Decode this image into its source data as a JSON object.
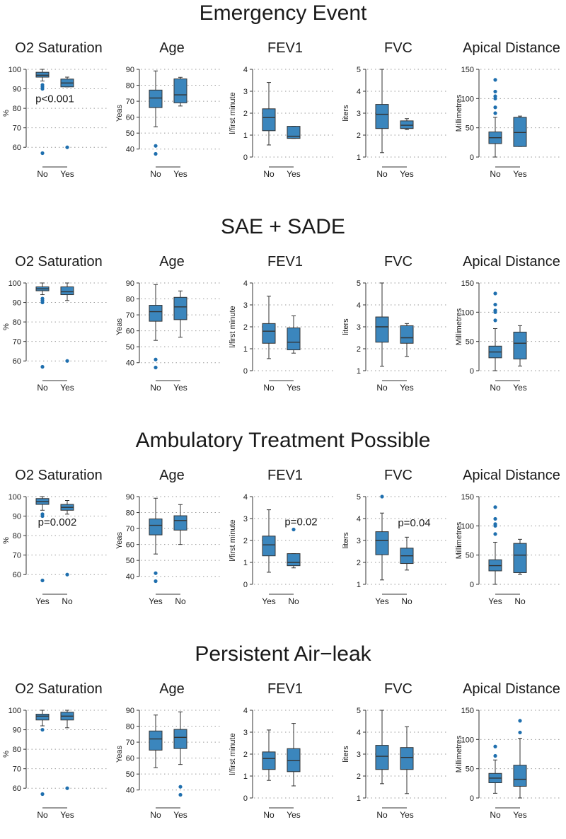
{
  "colors": {
    "box": "#3b86bd",
    "outlier": "#1f6fae",
    "axis": "#333333",
    "grid": "#9a9a9a",
    "text": "#1a1a1a"
  },
  "chart_data": [
    {
      "section": "Emergency Event",
      "panels": [
        {
          "type": "box",
          "title": "O2 Saturation",
          "ylabel": "%",
          "ylim": [
            55,
            100
          ],
          "ticks": [
            60,
            70,
            80,
            90,
            100
          ],
          "categories": [
            "No",
            "Yes"
          ],
          "boxes": [
            {
              "min": 94,
              "q1": 96,
              "median": 97,
              "q3": 98.5,
              "max": 100,
              "outliers": [
                92,
                91,
                90,
                57
              ]
            },
            {
              "min": 91,
              "q1": 91,
              "median": 93,
              "q3": 95,
              "max": 96,
              "outliers": [
                60
              ]
            }
          ],
          "annotation": {
            "text": "p<0.001",
            "x": 1.5,
            "y": 85
          }
        },
        {
          "type": "box",
          "title": "Age",
          "ylabel": "Yeas",
          "ylim": [
            35,
            90
          ],
          "ticks": [
            40,
            50,
            60,
            70,
            80,
            90
          ],
          "categories": [
            "No",
            "Yes"
          ],
          "boxes": [
            {
              "min": 54,
              "q1": 66,
              "median": 72,
              "q3": 77,
              "max": 89,
              "outliers": [
                42,
                37
              ]
            },
            {
              "min": 67,
              "q1": 69,
              "median": 74,
              "q3": 84,
              "max": 85,
              "outliers": []
            }
          ]
        },
        {
          "type": "box",
          "title": "FEV1",
          "ylabel": "l/first minute",
          "ylim": [
            0,
            4
          ],
          "ticks": [
            0,
            1,
            2,
            3,
            4
          ],
          "categories": [
            "No",
            "Yes"
          ],
          "boxes": [
            {
              "min": 0.55,
              "q1": 1.2,
              "median": 1.8,
              "q3": 2.2,
              "max": 3.4,
              "outliers": []
            },
            {
              "min": 0.85,
              "q1": 0.85,
              "median": 0.95,
              "q3": 1.4,
              "max": 1.4,
              "outliers": []
            }
          ]
        },
        {
          "type": "box",
          "title": "FVC",
          "ylabel": "liters",
          "ylim": [
            1,
            5
          ],
          "ticks": [
            1,
            2,
            3,
            4,
            5
          ],
          "categories": [
            "No",
            "Yes"
          ],
          "boxes": [
            {
              "min": 1.2,
              "q1": 2.3,
              "median": 2.95,
              "q3": 3.4,
              "max": 5.0,
              "outliers": []
            },
            {
              "min": 2.25,
              "q1": 2.3,
              "median": 2.45,
              "q3": 2.65,
              "max": 2.75,
              "outliers": []
            }
          ]
        },
        {
          "type": "box",
          "title": "Apical Distance",
          "ylabel": "Millimetres",
          "ylim": [
            0,
            150
          ],
          "ticks": [
            0,
            50,
            100,
            150
          ],
          "categories": [
            "No",
            "Yes"
          ],
          "boxes": [
            {
              "min": 0,
              "q1": 23,
              "median": 33,
              "q3": 43,
              "max": 68,
              "outliers": [
                75,
                85,
                100,
                104,
                112,
                132
              ]
            },
            {
              "min": 18,
              "q1": 18,
              "median": 42,
              "q3": 68,
              "max": 70,
              "outliers": []
            }
          ]
        }
      ]
    },
    {
      "section": "SAE + SADE",
      "panels": [
        {
          "type": "box",
          "title": "O2 Saturation",
          "ylabel": "%",
          "ylim": [
            55,
            100
          ],
          "ticks": [
            60,
            70,
            80,
            90,
            100
          ],
          "categories": [
            "No",
            "Yes"
          ],
          "boxes": [
            {
              "min": 94,
              "q1": 96,
              "median": 97,
              "q3": 98,
              "max": 100,
              "outliers": [
                92,
                91,
                90,
                57
              ]
            },
            {
              "min": 91,
              "q1": 94,
              "median": 95.5,
              "q3": 98,
              "max": 100,
              "outliers": [
                60
              ]
            }
          ]
        },
        {
          "type": "box",
          "title": "Age",
          "ylabel": "Yeas",
          "ylim": [
            35,
            90
          ],
          "ticks": [
            40,
            50,
            60,
            70,
            80,
            90
          ],
          "categories": [
            "No",
            "Yes"
          ],
          "boxes": [
            {
              "min": 54,
              "q1": 66,
              "median": 72,
              "q3": 76,
              "max": 89,
              "outliers": [
                42,
                37
              ]
            },
            {
              "min": 56,
              "q1": 67,
              "median": 75,
              "q3": 81,
              "max": 85,
              "outliers": []
            }
          ]
        },
        {
          "type": "box",
          "title": "FEV1",
          "ylabel": "l/first minute",
          "ylim": [
            0,
            4
          ],
          "ticks": [
            0,
            1,
            2,
            3,
            4
          ],
          "categories": [
            "No",
            "Yes"
          ],
          "boxes": [
            {
              "min": 0.55,
              "q1": 1.25,
              "median": 1.8,
              "q3": 2.15,
              "max": 3.4,
              "outliers": []
            },
            {
              "min": 0.8,
              "q1": 0.95,
              "median": 1.3,
              "q3": 1.95,
              "max": 2.5,
              "outliers": []
            }
          ]
        },
        {
          "type": "box",
          "title": "FVC",
          "ylabel": "liters",
          "ylim": [
            1,
            5
          ],
          "ticks": [
            1,
            2,
            3,
            4,
            5
          ],
          "categories": [
            "No",
            "Yes"
          ],
          "boxes": [
            {
              "min": 1.2,
              "q1": 2.3,
              "median": 3.0,
              "q3": 3.45,
              "max": 5.0,
              "outliers": []
            },
            {
              "min": 1.65,
              "q1": 2.25,
              "median": 2.5,
              "q3": 3.05,
              "max": 3.15,
              "outliers": []
            }
          ]
        },
        {
          "type": "box",
          "title": "Apical Distance",
          "ylabel": "Millimetres",
          "ylim": [
            0,
            150
          ],
          "ticks": [
            0,
            50,
            100,
            150
          ],
          "categories": [
            "No",
            "Yes"
          ],
          "boxes": [
            {
              "min": 0,
              "q1": 22,
              "median": 32,
              "q3": 42,
              "max": 72,
              "outliers": [
                86,
                100,
                103,
                113,
                132
              ]
            },
            {
              "min": 8,
              "q1": 20,
              "median": 47,
              "q3": 66,
              "max": 77,
              "outliers": []
            }
          ]
        }
      ]
    },
    {
      "section": "Ambulatory Treatment Possible",
      "panels": [
        {
          "type": "box",
          "title": "O2 Saturation",
          "ylabel": "%",
          "ylim": [
            55,
            100
          ],
          "ticks": [
            60,
            70,
            80,
            90,
            100
          ],
          "categories": [
            "Yes",
            "No"
          ],
          "boxes": [
            {
              "min": 93,
              "q1": 96,
              "median": 97.5,
              "q3": 99,
              "max": 100,
              "outliers": [
                91,
                90,
                57
              ]
            },
            {
              "min": 91,
              "q1": 93,
              "median": 94.5,
              "q3": 96,
              "max": 98,
              "outliers": [
                60
              ]
            }
          ],
          "annotation": {
            "text": "p=0.002",
            "x": 1.6,
            "y": 87
          }
        },
        {
          "type": "box",
          "title": "Age",
          "ylabel": "Yeas",
          "ylim": [
            35,
            90
          ],
          "ticks": [
            40,
            50,
            60,
            70,
            80,
            90
          ],
          "categories": [
            "Yes",
            "No"
          ],
          "boxes": [
            {
              "min": 54,
              "q1": 66,
              "median": 72,
              "q3": 76,
              "max": 89,
              "outliers": [
                42,
                37
              ]
            },
            {
              "min": 60,
              "q1": 69,
              "median": 75,
              "q3": 78,
              "max": 85,
              "outliers": []
            }
          ]
        },
        {
          "type": "box",
          "title": "FEV1",
          "ylabel": "l/first minute",
          "ylim": [
            0,
            4
          ],
          "ticks": [
            0,
            1,
            2,
            3,
            4
          ],
          "categories": [
            "Yes",
            "No"
          ],
          "boxes": [
            {
              "min": 0.55,
              "q1": 1.3,
              "median": 1.8,
              "q3": 2.2,
              "max": 3.4,
              "outliers": []
            },
            {
              "min": 0.75,
              "q1": 0.85,
              "median": 1.0,
              "q3": 1.4,
              "max": 1.4,
              "outliers": [
                2.5
              ]
            }
          ],
          "annotation": {
            "text": "p=0.02",
            "x": 2.3,
            "y": 2.85
          }
        },
        {
          "type": "box",
          "title": "FVC",
          "ylabel": "liters",
          "ylim": [
            1,
            5
          ],
          "ticks": [
            1,
            2,
            3,
            4,
            5
          ],
          "categories": [
            "Yes",
            "No"
          ],
          "boxes": [
            {
              "min": 1.2,
              "q1": 2.35,
              "median": 3.0,
              "q3": 3.4,
              "max": 4.25,
              "outliers": [
                5.0
              ]
            },
            {
              "min": 1.65,
              "q1": 1.95,
              "median": 2.3,
              "q3": 2.65,
              "max": 3.15,
              "outliers": []
            }
          ],
          "annotation": {
            "text": "p=0.04",
            "x": 2.3,
            "y": 3.8
          }
        },
        {
          "type": "box",
          "title": "Apical Distance",
          "ylabel": "Millimetres",
          "ylim": [
            0,
            150
          ],
          "ticks": [
            0,
            50,
            100,
            150
          ],
          "categories": [
            "Yes",
            "No"
          ],
          "boxes": [
            {
              "min": 0,
              "q1": 23,
              "median": 32,
              "q3": 42,
              "max": 72,
              "outliers": [
                86,
                100,
                103,
                112,
                132
              ]
            },
            {
              "min": 17,
              "q1": 20,
              "median": 50,
              "q3": 70,
              "max": 77,
              "outliers": []
            }
          ]
        }
      ]
    },
    {
      "section": "Persistent Air−leak",
      "panels": [
        {
          "type": "box",
          "title": "O2 Saturation",
          "ylabel": "%",
          "ylim": [
            55,
            100
          ],
          "ticks": [
            60,
            70,
            80,
            90,
            100
          ],
          "categories": [
            "No",
            "Yes"
          ],
          "boxes": [
            {
              "min": 92,
              "q1": 95,
              "median": 97,
              "q3": 98,
              "max": 100,
              "outliers": [
                90,
                57
              ]
            },
            {
              "min": 91,
              "q1": 95,
              "median": 97,
              "q3": 99,
              "max": 100,
              "outliers": [
                60
              ]
            }
          ]
        },
        {
          "type": "box",
          "title": "Age",
          "ylabel": "Yeas",
          "ylim": [
            35,
            90
          ],
          "ticks": [
            40,
            50,
            60,
            70,
            80,
            90
          ],
          "categories": [
            "No",
            "Yes"
          ],
          "boxes": [
            {
              "min": 54,
              "q1": 65,
              "median": 72,
              "q3": 77,
              "max": 87,
              "outliers": []
            },
            {
              "min": 56,
              "q1": 66,
              "median": 73,
              "q3": 78,
              "max": 89,
              "outliers": [
                42,
                37
              ]
            }
          ]
        },
        {
          "type": "box",
          "title": "FEV1",
          "ylabel": "l/first minute",
          "ylim": [
            0,
            4
          ],
          "ticks": [
            0,
            1,
            2,
            3,
            4
          ],
          "categories": [
            "No",
            "Yes"
          ],
          "boxes": [
            {
              "min": 0.8,
              "q1": 1.3,
              "median": 1.8,
              "q3": 2.1,
              "max": 3.1,
              "outliers": []
            },
            {
              "min": 0.55,
              "q1": 1.2,
              "median": 1.7,
              "q3": 2.25,
              "max": 3.4,
              "outliers": []
            }
          ]
        },
        {
          "type": "box",
          "title": "FVC",
          "ylabel": "liters",
          "ylim": [
            1,
            5
          ],
          "ticks": [
            1,
            2,
            3,
            4,
            5
          ],
          "categories": [
            "No",
            "Yes"
          ],
          "boxes": [
            {
              "min": 1.65,
              "q1": 2.3,
              "median": 2.9,
              "q3": 3.4,
              "max": 5.0,
              "outliers": []
            },
            {
              "min": 1.2,
              "q1": 2.3,
              "median": 2.85,
              "q3": 3.3,
              "max": 4.25,
              "outliers": []
            }
          ]
        },
        {
          "type": "box",
          "title": "Apical Distance",
          "ylabel": "Millimetres",
          "ylim": [
            0,
            150
          ],
          "ticks": [
            0,
            50,
            100,
            150
          ],
          "categories": [
            "No",
            "Yes"
          ],
          "boxes": [
            {
              "min": 8,
              "q1": 26,
              "median": 34,
              "q3": 42,
              "max": 65,
              "outliers": [
                72,
                88
              ]
            },
            {
              "min": 0,
              "q1": 20,
              "median": 32,
              "q3": 56,
              "max": 102,
              "outliers": [
                112,
                132
              ]
            }
          ]
        }
      ]
    }
  ]
}
